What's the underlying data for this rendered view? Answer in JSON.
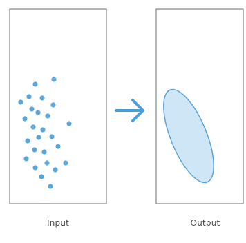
{
  "panels": {
    "input": {
      "caption": "Input"
    },
    "output": {
      "caption": "Output"
    }
  },
  "colors": {
    "frame": "#6b6b6b",
    "point": "#5aa6dc",
    "arrow": "#4b9fd8",
    "ellipse_fill": "#cfe6f6",
    "ellipse_stroke": "#5aa6dc",
    "caption_text": "#4a4a4a"
  },
  "icons": {
    "transform_arrow": "arrow-right-icon"
  }
}
